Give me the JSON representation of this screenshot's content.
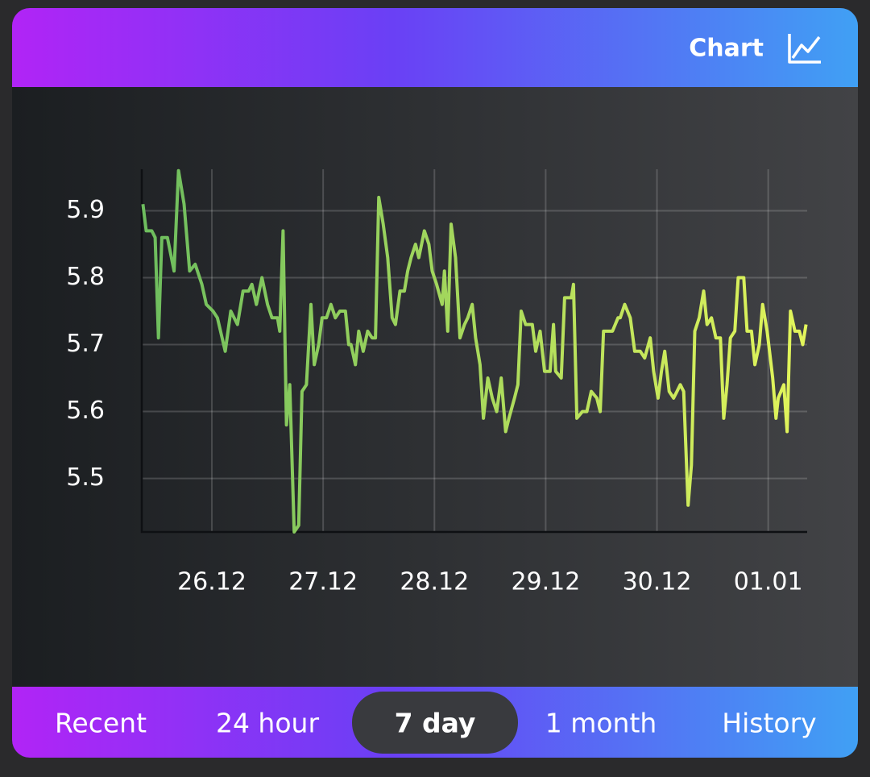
{
  "header": {
    "title": "Chart"
  },
  "chart_data": {
    "type": "line",
    "x": [
      25.38,
      25.41,
      25.46,
      25.49,
      25.52,
      25.55,
      25.6,
      25.66,
      25.7,
      25.75,
      25.8,
      25.85,
      25.91,
      25.95,
      26.01,
      26.05,
      26.12,
      26.17,
      26.23,
      26.28,
      26.33,
      26.36,
      26.4,
      26.45,
      26.5,
      26.54,
      26.59,
      26.61,
      26.64,
      26.67,
      26.7,
      26.74,
      26.78,
      26.81,
      26.85,
      26.89,
      26.92,
      26.96,
      26.99,
      27.03,
      27.07,
      27.11,
      27.15,
      27.2,
      27.23,
      27.25,
      27.29,
      27.32,
      27.36,
      27.4,
      27.44,
      27.47,
      27.5,
      27.54,
      27.58,
      27.62,
      27.65,
      27.69,
      27.73,
      27.76,
      27.79,
      27.83,
      27.86,
      27.91,
      27.95,
      27.98,
      28.02,
      28.07,
      28.09,
      28.12,
      28.15,
      28.19,
      28.23,
      28.27,
      28.3,
      28.34,
      28.37,
      28.41,
      28.44,
      28.48,
      28.52,
      28.56,
      28.6,
      28.64,
      28.67,
      28.72,
      28.75,
      28.78,
      28.82,
      28.88,
      28.91,
      28.95,
      28.99,
      29.04,
      29.07,
      29.09,
      29.14,
      29.17,
      29.23,
      29.25,
      29.28,
      29.33,
      29.37,
      29.41,
      29.46,
      29.49,
      29.52,
      29.56,
      29.6,
      29.65,
      29.67,
      29.71,
      29.76,
      29.8,
      29.85,
      29.89,
      29.94,
      29.97,
      30.01,
      30.04,
      30.07,
      30.11,
      30.15,
      30.18,
      30.21,
      30.24,
      30.28,
      30.31,
      30.34,
      30.38,
      30.42,
      30.45,
      30.49,
      30.53,
      30.57,
      30.6,
      30.63,
      30.66,
      30.7,
      30.73,
      30.78,
      30.81,
      30.85,
      30.88,
      30.92,
      30.95,
      30.99,
      31.04,
      31.07,
      31.09,
      31.14,
      31.17,
      31.2,
      31.24,
      31.28,
      31.31,
      31.34
    ],
    "values": [
      5.91,
      5.87,
      5.87,
      5.86,
      5.71,
      5.86,
      5.86,
      5.81,
      5.96,
      5.91,
      5.81,
      5.82,
      5.79,
      5.76,
      5.75,
      5.74,
      5.69,
      5.75,
      5.73,
      5.78,
      5.78,
      5.79,
      5.76,
      5.8,
      5.76,
      5.74,
      5.74,
      5.72,
      5.87,
      5.58,
      5.64,
      5.42,
      5.43,
      5.63,
      5.64,
      5.76,
      5.67,
      5.7,
      5.74,
      5.74,
      5.76,
      5.74,
      5.75,
      5.75,
      5.7,
      5.7,
      5.67,
      5.72,
      5.69,
      5.72,
      5.71,
      5.71,
      5.92,
      5.88,
      5.83,
      5.74,
      5.73,
      5.78,
      5.78,
      5.81,
      5.83,
      5.85,
      5.83,
      5.87,
      5.85,
      5.81,
      5.79,
      5.76,
      5.81,
      5.72,
      5.88,
      5.83,
      5.71,
      5.73,
      5.74,
      5.76,
      5.71,
      5.67,
      5.59,
      5.65,
      5.62,
      5.6,
      5.65,
      5.57,
      5.59,
      5.62,
      5.64,
      5.75,
      5.73,
      5.73,
      5.69,
      5.72,
      5.66,
      5.66,
      5.73,
      5.66,
      5.65,
      5.77,
      5.77,
      5.79,
      5.59,
      5.6,
      5.6,
      5.63,
      5.62,
      5.6,
      5.72,
      5.72,
      5.72,
      5.74,
      5.74,
      5.76,
      5.74,
      5.69,
      5.69,
      5.68,
      5.71,
      5.66,
      5.62,
      5.66,
      5.69,
      5.63,
      5.62,
      5.63,
      5.64,
      5.63,
      5.46,
      5.52,
      5.72,
      5.74,
      5.78,
      5.73,
      5.74,
      5.71,
      5.71,
      5.59,
      5.64,
      5.71,
      5.72,
      5.8,
      5.8,
      5.72,
      5.72,
      5.67,
      5.7,
      5.76,
      5.72,
      5.65,
      5.59,
      5.62,
      5.64,
      5.57,
      5.75,
      5.72,
      5.72,
      5.7,
      5.73
    ],
    "color_start": "#6dbd5e",
    "color_end": "#e3f55b",
    "xlim": [
      25.37,
      31.35
    ],
    "xticks": [
      {
        "value": 26,
        "label": "26.12"
      },
      {
        "value": 27,
        "label": "27.12"
      },
      {
        "value": 28,
        "label": "28.12"
      },
      {
        "value": 29,
        "label": "29.12"
      },
      {
        "value": 30,
        "label": "30.12"
      },
      {
        "value": 31,
        "label": "01.01"
      }
    ],
    "ylim": [
      5.42,
      5.962
    ],
    "yticks": [
      5.5,
      5.6,
      5.7,
      5.8,
      5.9
    ],
    "grid": true
  },
  "tabs": [
    "Recent",
    "24 hour",
    "7 day",
    "1 month",
    "History"
  ],
  "active_tab": 2
}
